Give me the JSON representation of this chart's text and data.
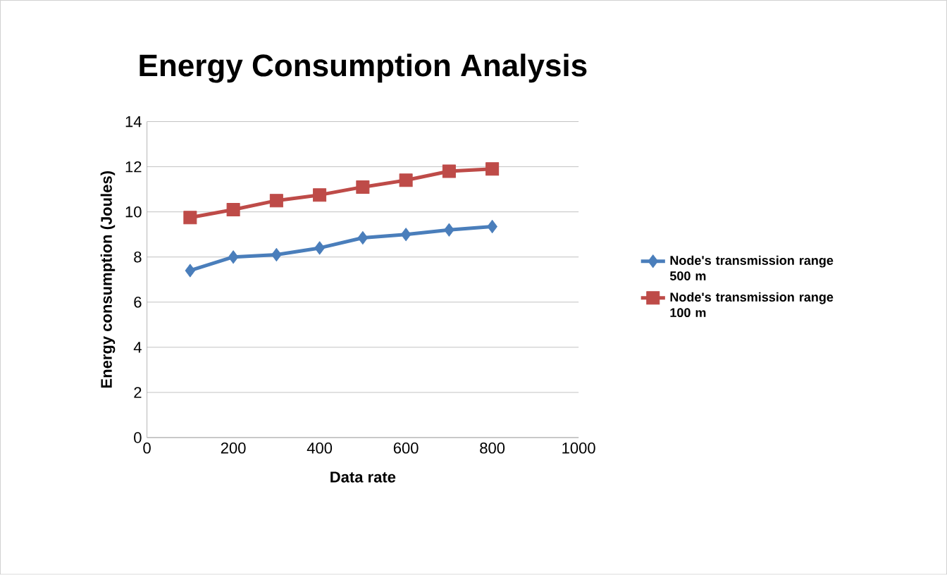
{
  "chart_data": {
    "type": "line",
    "title": "Energy Consumption Analysis",
    "xlabel": "Data rate",
    "ylabel": "Energy consumption (Joules)",
    "x": [
      100,
      200,
      300,
      400,
      500,
      600,
      700,
      800
    ],
    "series": [
      {
        "name": "Node's transmission range 500 m",
        "color": "#4a7ebb",
        "marker": "diamond",
        "values": [
          7.4,
          8.0,
          8.1,
          8.4,
          8.85,
          9.0,
          9.2,
          9.35
        ]
      },
      {
        "name": "Node's transmission range 100 m",
        "color": "#be4b48",
        "marker": "square",
        "values": [
          9.75,
          10.1,
          10.5,
          10.75,
          11.1,
          11.4,
          11.8,
          11.9
        ]
      }
    ],
    "xlim": [
      0,
      1000
    ],
    "xticks": [
      0,
      200,
      400,
      600,
      800,
      1000
    ],
    "ylim": [
      0,
      14
    ],
    "yticks": [
      0,
      2,
      4,
      6,
      8,
      10,
      12,
      14
    ],
    "grid": "y",
    "legend": "right",
    "line_style": "solid"
  }
}
